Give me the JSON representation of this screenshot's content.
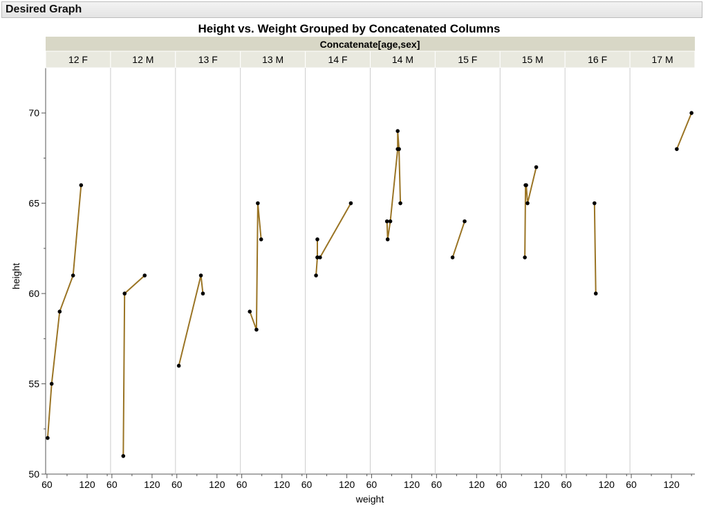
{
  "outline": {
    "title": "Desired Graph"
  },
  "chart_data": {
    "type": "line",
    "title": "Height vs. Weight Grouped by Concatenated Columns",
    "group_label": "Concatenate[age,sex]",
    "xlabel": "weight",
    "ylabel": "height",
    "ylim": [
      50,
      72.5
    ],
    "xlim": [
      58,
      155
    ],
    "x_ticks": [
      "60",
      "120"
    ],
    "y_ticks": [
      50,
      55,
      60,
      65,
      70
    ],
    "colors": {
      "line": "#9a7424",
      "marker": "#000000",
      "strip": "#e9e9df",
      "strip_top": "#d8d7c6",
      "divider": "#cccccc"
    },
    "panels": [
      {
        "label": "12 F",
        "points": [
          [
            61,
            52
          ],
          [
            67,
            55
          ],
          [
            79,
            59
          ],
          [
            99,
            61
          ],
          [
            111,
            66
          ]
        ]
      },
      {
        "label": "12 M",
        "points": [
          [
            77,
            51
          ],
          [
            79,
            60
          ],
          [
            109,
            61
          ]
        ]
      },
      {
        "label": "13 F",
        "points": [
          [
            63,
            56
          ],
          [
            96,
            61
          ],
          [
            99,
            60
          ]
        ]
      },
      {
        "label": "13 M",
        "points": [
          [
            72,
            59
          ],
          [
            82,
            58
          ],
          [
            84,
            65
          ],
          [
            89,
            63
          ]
        ]
      },
      {
        "label": "14 F",
        "points": [
          [
            74,
            61
          ],
          [
            76,
            62
          ],
          [
            76,
            63
          ],
          [
            76,
            62
          ],
          [
            80,
            62
          ],
          [
            126,
            65
          ]
        ]
      },
      {
        "label": "14 M",
        "points": [
          [
            83,
            64
          ],
          [
            84,
            63
          ],
          [
            88,
            64
          ],
          [
            99,
            68
          ],
          [
            99,
            69
          ],
          [
            101,
            68
          ],
          [
            103,
            65
          ]
        ]
      },
      {
        "label": "15 F",
        "points": [
          [
            84,
            62
          ],
          [
            102,
            64
          ]
        ]
      },
      {
        "label": "15 M",
        "points": [
          [
            95,
            62
          ],
          [
            96,
            66
          ],
          [
            97,
            66
          ],
          [
            99,
            65
          ],
          [
            112,
            67
          ]
        ]
      },
      {
        "label": "16 F",
        "points": [
          [
            102,
            65
          ],
          [
            104,
            60
          ]
        ]
      },
      {
        "label": "17 M",
        "points": [
          [
            128,
            68
          ],
          [
            150,
            70
          ]
        ]
      }
    ]
  }
}
